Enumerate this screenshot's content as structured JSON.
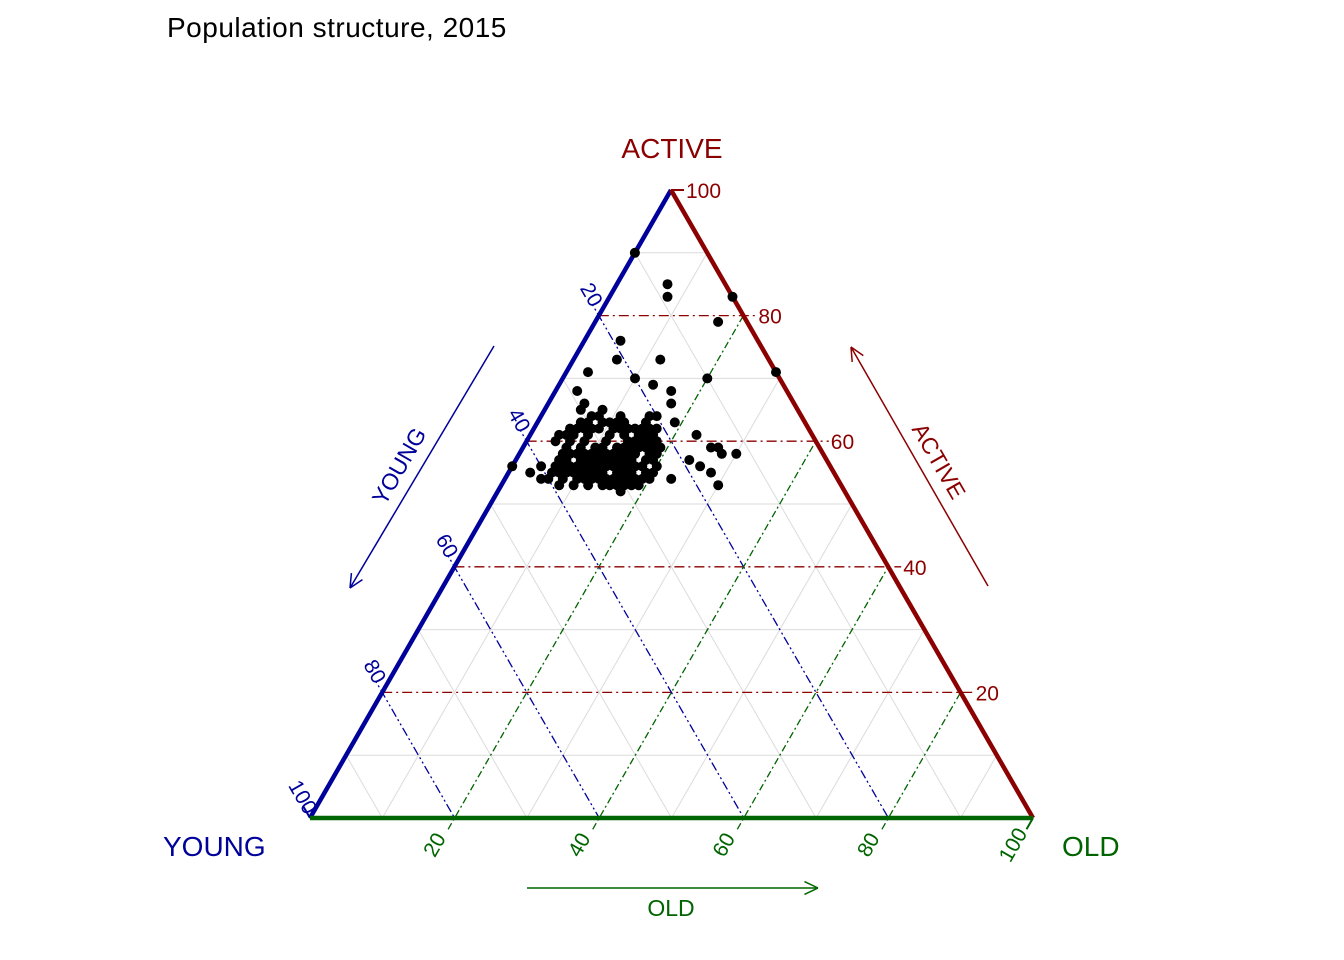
{
  "title": "Population structure, 2015",
  "chart_data": {
    "type": "scatter",
    "subtype": "ternary",
    "title": "Population structure, 2015",
    "corner_labels": {
      "top": "ACTIVE",
      "bottom_left": "YOUNG",
      "bottom_right": "OLD"
    },
    "axes": {
      "left": {
        "name": "YOUNG",
        "arrow_label": "YOUNG",
        "color": "#00009B",
        "ticks": [
          20,
          40,
          60,
          80,
          100
        ]
      },
      "right": {
        "name": "ACTIVE",
        "arrow_label": "ACTIVE",
        "color": "#8B0000",
        "ticks": [
          100,
          80,
          60,
          40,
          20
        ]
      },
      "bottom": {
        "name": "OLD",
        "arrow_label": "OLD",
        "color": "#006400",
        "ticks": [
          20,
          40,
          60,
          80,
          100
        ]
      }
    },
    "grid": {
      "major_values": [
        20,
        40,
        60,
        80
      ],
      "minor_values": [
        10,
        30,
        50,
        70,
        90
      ],
      "minor_color": "#DBDBDB"
    },
    "point_color": "#000000",
    "point_radius": 5,
    "points_format": [
      "young",
      "active",
      "old"
    ],
    "points": [
      [
        10,
        90,
        0
      ],
      [
        8,
        85,
        7
      ],
      [
        9,
        83,
        8
      ],
      [
        0,
        83,
        17
      ],
      [
        4,
        79,
        17
      ],
      [
        19,
        76,
        5
      ],
      [
        21,
        73,
        6
      ],
      [
        15,
        73,
        12
      ],
      [
        0,
        71,
        29
      ],
      [
        26,
        71,
        3
      ],
      [
        20,
        70,
        10
      ],
      [
        18,
        69,
        13
      ],
      [
        10,
        70,
        20
      ],
      [
        29,
        68,
        3
      ],
      [
        16,
        68,
        16
      ],
      [
        17,
        66,
        17
      ],
      [
        29,
        66,
        5
      ],
      [
        30,
        65,
        5
      ],
      [
        27,
        65,
        8
      ],
      [
        29,
        64,
        7
      ],
      [
        25,
        64,
        11
      ],
      [
        28,
        63,
        9
      ],
      [
        20,
        64,
        16
      ],
      [
        18,
        63,
        19
      ],
      [
        44,
        56,
        0
      ],
      [
        42,
        55,
        3
      ],
      [
        36,
        60,
        4
      ],
      [
        34,
        61,
        5
      ],
      [
        12,
        58,
        30
      ],
      [
        14,
        58,
        28
      ],
      [
        16,
        61,
        23
      ],
      [
        15,
        59,
        26
      ],
      [
        19,
        57,
        24
      ],
      [
        18,
        56,
        26
      ],
      [
        17,
        55,
        28
      ],
      [
        17,
        53,
        30
      ],
      [
        31,
        52,
        17
      ],
      [
        29,
        53,
        18
      ],
      [
        28,
        53,
        19
      ],
      [
        23,
        54,
        23
      ],
      [
        32,
        53,
        15
      ],
      [
        14,
        59,
        27
      ],
      [
        30,
        62,
        8
      ],
      [
        31,
        61,
        8
      ],
      [
        32,
        60,
        8
      ],
      [
        28,
        61,
        11
      ],
      [
        27,
        62,
        11
      ],
      [
        33,
        59,
        8
      ],
      [
        34,
        58,
        8
      ],
      [
        29,
        60,
        11
      ],
      [
        26,
        61,
        13
      ],
      [
        25,
        62,
        13
      ],
      [
        35,
        58,
        7
      ],
      [
        36,
        57,
        7
      ],
      [
        31,
        59,
        10
      ],
      [
        30,
        59,
        11
      ],
      [
        28,
        59,
        13
      ],
      [
        27,
        59,
        14
      ],
      [
        26,
        60,
        14
      ],
      [
        24,
        62,
        14
      ],
      [
        23,
        62,
        15
      ],
      [
        25,
        60,
        15
      ],
      [
        33,
        57,
        10
      ],
      [
        32,
        57,
        11
      ],
      [
        30,
        57,
        13
      ],
      [
        29,
        57,
        14
      ],
      [
        28,
        57,
        15
      ],
      [
        27,
        57,
        16
      ],
      [
        26,
        58,
        16
      ],
      [
        24,
        59,
        17
      ],
      [
        22,
        61,
        17
      ],
      [
        23,
        60,
        17
      ],
      [
        35,
        56,
        9
      ],
      [
        34,
        56,
        10
      ],
      [
        31,
        56,
        13
      ],
      [
        30,
        56,
        14
      ],
      [
        29,
        56,
        15
      ],
      [
        28,
        56,
        16
      ],
      [
        26,
        56,
        18
      ],
      [
        25,
        57,
        18
      ],
      [
        24,
        57,
        19
      ],
      [
        22,
        59,
        19
      ],
      [
        37,
        55,
        8
      ],
      [
        36,
        55,
        9
      ],
      [
        33,
        55,
        12
      ],
      [
        32,
        55,
        13
      ],
      [
        30,
        55,
        15
      ],
      [
        29,
        55,
        16
      ],
      [
        28,
        55,
        17
      ],
      [
        27,
        56,
        17
      ],
      [
        25,
        55,
        20
      ],
      [
        23,
        58,
        19
      ],
      [
        38,
        54,
        8
      ],
      [
        35,
        54,
        11
      ],
      [
        34,
        54,
        12
      ],
      [
        32,
        54,
        14
      ],
      [
        31,
        54,
        15
      ],
      [
        30,
        54,
        16
      ],
      [
        29,
        54,
        17
      ],
      [
        27,
        54,
        19
      ],
      [
        26,
        54,
        20
      ],
      [
        24,
        56,
        20
      ],
      [
        39,
        53,
        8
      ],
      [
        37,
        53,
        10
      ],
      [
        35,
        53,
        12
      ],
      [
        33,
        53,
        14
      ],
      [
        31,
        53,
        16
      ],
      [
        30,
        53,
        17
      ],
      [
        28,
        54,
        18
      ],
      [
        26,
        55,
        19
      ],
      [
        40,
        56,
        4
      ],
      [
        38,
        56,
        6
      ],
      [
        37,
        57,
        6
      ],
      [
        36,
        58,
        6
      ],
      [
        35,
        59,
        6
      ],
      [
        34,
        60,
        6
      ],
      [
        33,
        61,
        6
      ],
      [
        32,
        62,
        6
      ],
      [
        31,
        63,
        6
      ],
      [
        30,
        63,
        7
      ],
      [
        29,
        62,
        9
      ],
      [
        28,
        64,
        8
      ],
      [
        27,
        63,
        10
      ],
      [
        26,
        63,
        11
      ],
      [
        25,
        63,
        12
      ],
      [
        24,
        61,
        15
      ],
      [
        23,
        59,
        18
      ],
      [
        22,
        60,
        18
      ],
      [
        34,
        57,
        9
      ],
      [
        33,
        58,
        9
      ],
      [
        32,
        58,
        10
      ],
      [
        31,
        58,
        11
      ],
      [
        30,
        58,
        12
      ],
      [
        29,
        58,
        13
      ],
      [
        28,
        58,
        14
      ],
      [
        27,
        58,
        15
      ],
      [
        26,
        59,
        15
      ],
      [
        25,
        59,
        16
      ],
      [
        24,
        60,
        16
      ],
      [
        23,
        61,
        16
      ],
      [
        22,
        62,
        16
      ],
      [
        21,
        62,
        17
      ],
      [
        37,
        56,
        7
      ],
      [
        39,
        55,
        6
      ],
      [
        40,
        54,
        6
      ],
      [
        36,
        56,
        8
      ],
      [
        35,
        55,
        10
      ],
      [
        34,
        55,
        11
      ],
      [
        33,
        56,
        11
      ],
      [
        32,
        56,
        12
      ],
      [
        31,
        57,
        12
      ],
      [
        24,
        58,
        18
      ],
      [
        21,
        64,
        15
      ],
      [
        22,
        63,
        15
      ],
      [
        33,
        54,
        13
      ],
      [
        36,
        54,
        10
      ],
      [
        38,
        55,
        7
      ],
      [
        41,
        54,
        5
      ],
      [
        35,
        61,
        4
      ],
      [
        33,
        62,
        5
      ],
      [
        31,
        62,
        7
      ],
      [
        26,
        62,
        12
      ]
    ]
  }
}
